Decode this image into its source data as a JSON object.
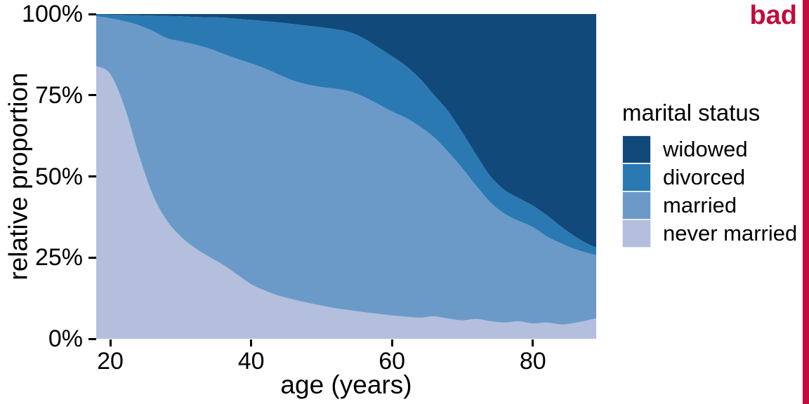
{
  "annotation": {
    "label": "bad",
    "color": "#C30B3C"
  },
  "chart_data": {
    "type": "area",
    "stacked": true,
    "normalized": true,
    "title": "",
    "xlabel": "age (years)",
    "ylabel": "relative proportion",
    "legend_title": "marital status",
    "legend_position": "right",
    "grid": false,
    "xlim": [
      18,
      89
    ],
    "ylim": [
      0,
      100
    ],
    "x_ticks": [
      {
        "value": 20,
        "label": "20"
      },
      {
        "value": 40,
        "label": "40"
      },
      {
        "value": 60,
        "label": "60"
      },
      {
        "value": 80,
        "label": "80"
      }
    ],
    "y_ticks": [
      {
        "value": 0,
        "label": "0%"
      },
      {
        "value": 25,
        "label": "25%"
      },
      {
        "value": 50,
        "label": "50%"
      },
      {
        "value": 75,
        "label": "75%"
      },
      {
        "value": 100,
        "label": "100%"
      }
    ],
    "x": [
      18,
      20,
      22,
      24,
      26,
      28,
      30,
      32,
      34,
      36,
      38,
      40,
      42,
      44,
      46,
      48,
      50,
      52,
      54,
      56,
      58,
      60,
      62,
      64,
      66,
      68,
      70,
      72,
      74,
      76,
      78,
      80,
      82,
      84,
      86,
      88,
      89
    ],
    "series": [
      {
        "name": "never married",
        "color": "#B4BFDD",
        "values": [
          84,
          81.5,
          71.5,
          57,
          44.5,
          36.5,
          31.5,
          28,
          25.3,
          22.8,
          19.8,
          16.8,
          14.8,
          13.2,
          12.1,
          11.1,
          10.2,
          9.4,
          8.8,
          8.2,
          7.7,
          7.2,
          6.8,
          6.5,
          6.9,
          6.2,
          5.7,
          6.1,
          5.4,
          5,
          5.4,
          4.7,
          5,
          4.4,
          4.9,
          5.8,
          6.3
        ]
      },
      {
        "name": "married",
        "color": "#6B9AC8",
        "values": [
          15.3,
          17.2,
          26.3,
          39.6,
          50.3,
          56.1,
          60.1,
          62.6,
          64.1,
          65,
          66.4,
          68,
          68.4,
          68.1,
          67.4,
          67.2,
          67.3,
          67.6,
          67.4,
          66.3,
          64.6,
          62.8,
          61.2,
          58.8,
          55.1,
          51.3,
          46.8,
          40.9,
          36.6,
          33.5,
          30.9,
          29.7,
          26.5,
          25,
          22.7,
          20.5,
          19.5
        ]
      },
      {
        "name": "divorced",
        "color": "#2A79B2",
        "values": [
          0.6,
          1.1,
          1.9,
          3,
          4.7,
          6.8,
          7.7,
          8.5,
          9.6,
          11.1,
          12.3,
          13.4,
          14.6,
          16.1,
          17.4,
          18.1,
          18.4,
          18.3,
          18.2,
          18,
          17.5,
          17,
          16,
          14.7,
          13,
          12.5,
          11,
          9.5,
          8,
          7.3,
          7,
          6.6,
          6.5,
          5.2,
          3.9,
          2.7,
          2.3
        ]
      },
      {
        "name": "widowed",
        "color": "#11497B",
        "values": [
          0.1,
          0.2,
          0.3,
          0.4,
          0.5,
          0.6,
          0.7,
          0.9,
          1,
          1.1,
          1.5,
          1.8,
          2.2,
          2.6,
          3.1,
          3.6,
          4.1,
          4.7,
          5.6,
          7.5,
          10.2,
          13,
          16,
          20,
          25,
          30,
          36.5,
          43.5,
          50,
          54.2,
          56.7,
          59,
          62,
          65.4,
          68.5,
          71,
          71.9
        ]
      }
    ],
    "legend_items": [
      "widowed",
      "divorced",
      "married",
      "never married"
    ]
  }
}
